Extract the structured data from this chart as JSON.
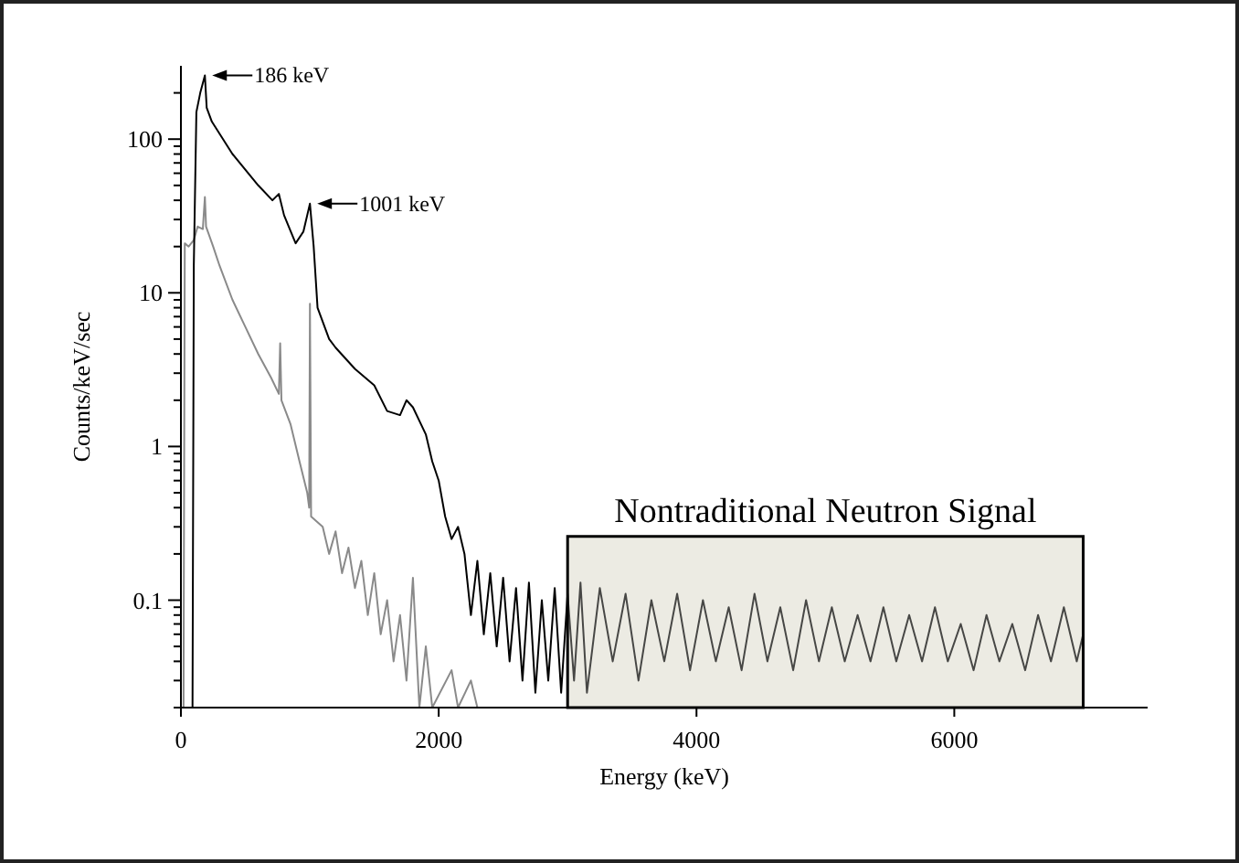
{
  "chart_data": {
    "type": "line",
    "xlabel": "Energy (keV)",
    "ylabel": "Counts/keV/sec",
    "log": "y",
    "grid": false,
    "xlim": [
      0,
      7500
    ],
    "xticks": [
      0,
      2000,
      4000,
      6000
    ],
    "ylim": [
      0.02,
      300
    ],
    "yticks": [
      {
        "value": 0.02,
        "label": null
      },
      {
        "value": 0.03,
        "label": null
      },
      {
        "value": 0.04,
        "label": null
      },
      {
        "value": 0.05,
        "label": null
      },
      {
        "value": 0.06,
        "label": null
      },
      {
        "value": 0.07,
        "label": null
      },
      {
        "value": 0.08,
        "label": null
      },
      {
        "value": 0.09,
        "label": null
      },
      0.1,
      {
        "value": 0.2,
        "label": null
      },
      {
        "value": 0.3,
        "label": null
      },
      {
        "value": 0.4,
        "label": null
      },
      {
        "value": 0.5,
        "label": null
      },
      {
        "value": 0.6,
        "label": null
      },
      {
        "value": 0.7,
        "label": null
      },
      {
        "value": 0.8,
        "label": null
      },
      {
        "value": 0.9,
        "label": null
      },
      1,
      {
        "value": 2,
        "label": null
      },
      {
        "value": 3,
        "label": null
      },
      {
        "value": 4,
        "label": null
      },
      {
        "value": 5,
        "label": null
      },
      {
        "value": 6,
        "label": null
      },
      {
        "value": 7,
        "label": null
      },
      {
        "value": 8,
        "label": null
      },
      {
        "value": 9,
        "label": null
      },
      10,
      {
        "value": 20,
        "label": null
      },
      {
        "value": 30,
        "label": null
      },
      {
        "value": 40,
        "label": null
      },
      {
        "value": 50,
        "label": null
      },
      {
        "value": 60,
        "label": null
      },
      {
        "value": 70,
        "label": null
      },
      {
        "value": 80,
        "label": null
      },
      {
        "value": 90,
        "label": null
      },
      100,
      {
        "value": 200,
        "label": null
      }
    ],
    "series": [
      {
        "color": "#8a8a8a",
        "x": [
          20,
          30,
          60,
          100,
          130,
          170,
          186,
          195,
          250,
          300,
          400,
          500,
          600,
          700,
          760,
          770,
          780,
          850,
          920,
          980,
          995,
          1001,
          1010,
          1100,
          1150,
          1200,
          1250,
          1300,
          1350,
          1400,
          1450,
          1500,
          1550,
          1600,
          1650,
          1700,
          1750,
          1800,
          1850,
          1900,
          1950,
          2100,
          2150,
          2250,
          2300
        ],
        "values": [
          0.02,
          21,
          20,
          22,
          27,
          26,
          42,
          27,
          20,
          15,
          9,
          6,
          4,
          2.8,
          2.2,
          4.7,
          2.0,
          1.4,
          0.8,
          0.5,
          0.4,
          8.5,
          0.35,
          0.3,
          0.2,
          0.28,
          0.15,
          0.22,
          0.12,
          0.18,
          0.08,
          0.15,
          0.06,
          0.1,
          0.04,
          0.08,
          0.03,
          0.14,
          0.02,
          0.05,
          0.02,
          0.035,
          0.02,
          0.03,
          0.02
        ]
      },
      {
        "color": "#000000",
        "x": [
          90,
          100,
          120,
          150,
          186,
          200,
          240,
          400,
          600,
          710,
          760,
          800,
          890,
          950,
          1001,
          1030,
          1060,
          1150,
          1200,
          1350,
          1500,
          1600,
          1700,
          1750,
          1800,
          1900,
          1950,
          2000,
          2050,
          2100,
          2150,
          2200,
          2250,
          2300,
          2350,
          2400,
          2450,
          2500,
          2550,
          2600,
          2650,
          2700,
          2750,
          2800,
          2850,
          2900,
          2950,
          3000,
          3050,
          3100,
          3150,
          3250,
          3350,
          3450,
          3550,
          3650,
          3750,
          3850,
          3950,
          4050,
          4150,
          4250,
          4350,
          4450,
          4550,
          4650,
          4750,
          4850,
          4950,
          5050,
          5150,
          5250,
          5350,
          5450,
          5550,
          5650,
          5750,
          5850,
          5950,
          6050,
          6150,
          6250,
          6350,
          6450,
          6550,
          6650,
          6750,
          6850,
          6950,
          7000
        ],
        "values": [
          0.02,
          15,
          150,
          200,
          260,
          160,
          130,
          80,
          50,
          40,
          44,
          32,
          21,
          25,
          38,
          20,
          8,
          5,
          4.4,
          3.2,
          2.5,
          1.7,
          1.6,
          2.0,
          1.8,
          1.2,
          0.8,
          0.6,
          0.35,
          0.25,
          0.3,
          0.2,
          0.08,
          0.18,
          0.06,
          0.15,
          0.05,
          0.14,
          0.04,
          0.12,
          0.03,
          0.13,
          0.025,
          0.1,
          0.03,
          0.12,
          0.025,
          0.11,
          0.03,
          0.13,
          0.025,
          0.12,
          0.04,
          0.11,
          0.03,
          0.1,
          0.04,
          0.11,
          0.035,
          0.1,
          0.04,
          0.09,
          0.035,
          0.11,
          0.04,
          0.09,
          0.035,
          0.1,
          0.04,
          0.09,
          0.04,
          0.08,
          0.04,
          0.09,
          0.04,
          0.08,
          0.04,
          0.09,
          0.04,
          0.07,
          0.035,
          0.08,
          0.04,
          0.07,
          0.035,
          0.08,
          0.04,
          0.09,
          0.04,
          0.06
        ]
      }
    ],
    "bands": [
      {
        "axis": "x",
        "from": 3000,
        "to": 7000,
        "color": "#ecebe3"
      }
    ],
    "annotations": [
      {
        "text": "186 keV",
        "x": 186,
        "y": 260
      },
      {
        "text": "1001 keV",
        "x": 1001,
        "y": 38
      },
      {
        "text": "Nontraditional Neutron Signal",
        "x": 5000,
        "y": 0.26
      }
    ]
  }
}
